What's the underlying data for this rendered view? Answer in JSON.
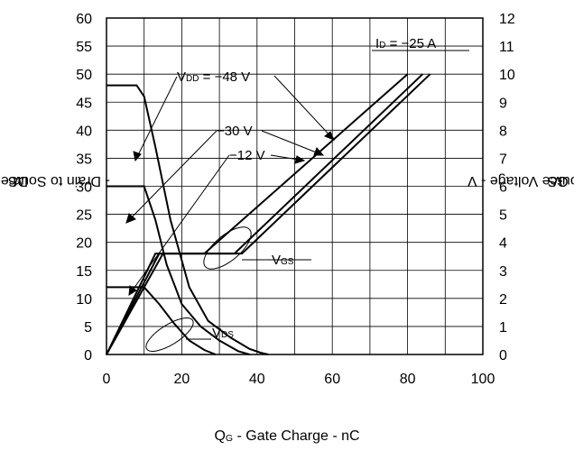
{
  "chart_data": {
    "type": "line",
    "xlabel": {
      "main": "Q",
      "sub": "G",
      "rest": " - Gate Charge - nC"
    },
    "ylabel_left": {
      "main": "V",
      "sub": "DS",
      "rest": " - Drain to Source Voltage - V"
    },
    "ylabel_right": {
      "main": "V",
      "sub": "GS",
      "rest": " - Gate to Source Voltage - V"
    },
    "x_ticks": [
      "0",
      "20",
      "40",
      "60",
      "80",
      "100"
    ],
    "y_left_ticks": [
      "0",
      "5",
      "10",
      "15",
      "20",
      "25",
      "30",
      "35",
      "40",
      "45",
      "50",
      "55",
      "60"
    ],
    "y_right_ticks": [
      "0",
      "1",
      "2",
      "3",
      "4",
      "5",
      "6",
      "7",
      "8",
      "9",
      "10",
      "11",
      "12"
    ],
    "xlim": [
      0,
      100
    ],
    "ylim_left": [
      0,
      60
    ],
    "ylim_right": [
      0,
      12
    ],
    "grid": true,
    "annotations": {
      "id": {
        "main": "I",
        "sub": "D",
        "rest": " = −25 A"
      },
      "vdd_48": {
        "main": "V",
        "sub": "DD",
        "rest": " = −48 V"
      },
      "vdd_30": "−30 V",
      "vdd_12": "−12 V",
      "vgs": {
        "main": "V",
        "sub": "GS"
      },
      "vds": {
        "main": "V",
        "sub": "DS"
      }
    },
    "series": [
      {
        "group": "VDS",
        "vdd": "-48 V",
        "x": [
          0,
          8,
          10,
          13,
          17,
          22,
          27,
          33,
          38,
          41,
          43
        ],
        "y": [
          48,
          48,
          46,
          37,
          24,
          12,
          6,
          3,
          1,
          0.3,
          0
        ]
      },
      {
        "group": "VDS",
        "vdd": "-30 V",
        "x": [
          0,
          10,
          13,
          16,
          20,
          25,
          30,
          35,
          38
        ],
        "y": [
          30,
          30,
          24,
          16,
          9,
          5,
          2.5,
          0.6,
          0
        ]
      },
      {
        "group": "VDS",
        "vdd": "-12 V",
        "x": [
          0,
          10,
          14,
          18,
          22,
          26,
          29
        ],
        "y": [
          12,
          12,
          9,
          5.5,
          2.5,
          0.8,
          0
        ]
      },
      {
        "group": "VGS",
        "vdd": "-12 V",
        "x": [
          0,
          13,
          26,
          80
        ],
        "y": [
          0,
          3.6,
          3.6,
          10
        ]
      },
      {
        "group": "VGS",
        "vdd": "-30 V",
        "x": [
          0,
          14,
          34,
          84
        ],
        "y": [
          0,
          3.6,
          3.6,
          10
        ]
      },
      {
        "group": "VGS",
        "vdd": "-48 V",
        "x": [
          0,
          15,
          36,
          86
        ],
        "y": [
          0,
          3.6,
          3.6,
          10
        ]
      }
    ]
  }
}
